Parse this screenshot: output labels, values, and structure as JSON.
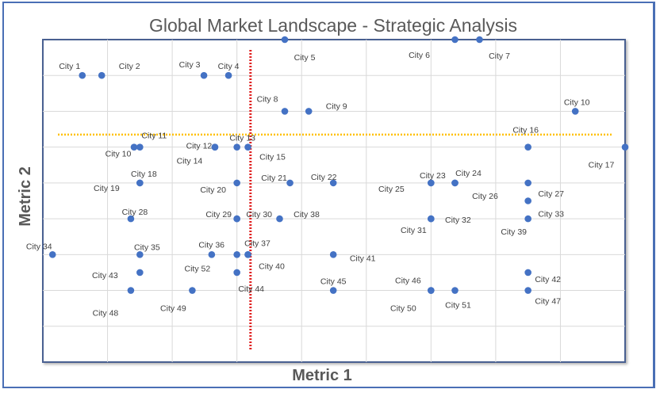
{
  "chart_data": {
    "type": "scatter",
    "title": "Global Market Landscape - Strategic Analysis",
    "xlabel": "Metric 1",
    "ylabel": "Metric 2",
    "xlim": [
      0,
      9
    ],
    "ylim": [
      0,
      9
    ],
    "grid": true,
    "tick_labels_shown": false,
    "point_color": "#4472c4",
    "reference_lines": [
      {
        "orientation": "vertical",
        "value": 3.21,
        "color": "#e02020",
        "style": "dotted"
      },
      {
        "orientation": "horizontal",
        "value": 6.35,
        "color": "#ffc000",
        "style": "dotted"
      }
    ],
    "points": [
      {
        "label": "City 1",
        "x": 0.61,
        "y": 8
      },
      {
        "label": "City 2",
        "x": 0.91,
        "y": 8
      },
      {
        "label": "City 3",
        "x": 2.49,
        "y": 8
      },
      {
        "label": "City 4",
        "x": 2.87,
        "y": 8
      },
      {
        "label": "City 5",
        "x": 3.74,
        "y": 9
      },
      {
        "label": "City 6",
        "x": 6.37,
        "y": 9
      },
      {
        "label": "City 7",
        "x": 6.75,
        "y": 9
      },
      {
        "label": "City 8",
        "x": 3.74,
        "y": 7
      },
      {
        "label": "City 9",
        "x": 4.11,
        "y": 7
      },
      {
        "label": "City 10",
        "x": 8.23,
        "y": 7
      },
      {
        "label": "City 10",
        "x": 1.41,
        "y": 6
      },
      {
        "label": "City 11",
        "x": 1.5,
        "y": 6
      },
      {
        "label": "City 12",
        "x": 2.66,
        "y": 6
      },
      {
        "label": "City 13",
        "x": 3.0,
        "y": 6
      },
      {
        "label": "City 14",
        "x": 2.66,
        "y": 6
      },
      {
        "label": "City 15",
        "x": 3.17,
        "y": 6
      },
      {
        "label": "City 16",
        "x": 7.5,
        "y": 6
      },
      {
        "label": "City 17",
        "x": 9.0,
        "y": 6
      },
      {
        "label": "City 18",
        "x": 1.5,
        "y": 5
      },
      {
        "label": "City 19",
        "x": 1.5,
        "y": 5
      },
      {
        "label": "City 20",
        "x": 3.0,
        "y": 5
      },
      {
        "label": "City 21",
        "x": 3.82,
        "y": 5
      },
      {
        "label": "City 22",
        "x": 4.49,
        "y": 5
      },
      {
        "label": "City 23",
        "x": 6.0,
        "y": 5
      },
      {
        "label": "City 24",
        "x": 6.37,
        "y": 5
      },
      {
        "label": "City 25",
        "x": 6.0,
        "y": 5
      },
      {
        "label": "City 26",
        "x": 6.37,
        "y": 5
      },
      {
        "label": "City 27",
        "x": 7.5,
        "y": 5
      },
      {
        "label": "City 28",
        "x": 1.36,
        "y": 4
      },
      {
        "label": "City 29",
        "x": 3.0,
        "y": 4
      },
      {
        "label": "City 30",
        "x": 3.0,
        "y": 4
      },
      {
        "label": "City 31",
        "x": 6.0,
        "y": 4
      },
      {
        "label": "City 32",
        "x": 6.0,
        "y": 4
      },
      {
        "label": "City 33",
        "x": 7.5,
        "y": 4.5
      },
      {
        "label": "City 34",
        "x": 0.15,
        "y": 3
      },
      {
        "label": "City 35",
        "x": 1.5,
        "y": 3
      },
      {
        "label": "City 36",
        "x": 3.0,
        "y": 3
      },
      {
        "label": "City 37",
        "x": 3.17,
        "y": 3
      },
      {
        "label": "City 38",
        "x": 3.66,
        "y": 4
      },
      {
        "label": "City 39",
        "x": 7.5,
        "y": 4
      },
      {
        "label": "City 40",
        "x": 3.17,
        "y": 3
      },
      {
        "label": "City 41",
        "x": 4.49,
        "y": 3
      },
      {
        "label": "City 42",
        "x": 7.5,
        "y": 2.5
      },
      {
        "label": "City 43",
        "x": 1.5,
        "y": 2.5
      },
      {
        "label": "City 44",
        "x": 3.0,
        "y": 2.5
      },
      {
        "label": "City 45",
        "x": 4.49,
        "y": 2
      },
      {
        "label": "City 46",
        "x": 6.0,
        "y": 2
      },
      {
        "label": "City 47",
        "x": 7.5,
        "y": 2
      },
      {
        "label": "City 48",
        "x": 1.36,
        "y": 2
      },
      {
        "label": "City 49",
        "x": 2.31,
        "y": 2
      },
      {
        "label": "City 50",
        "x": 6.0,
        "y": 2
      },
      {
        "label": "City 51",
        "x": 6.37,
        "y": 2
      },
      {
        "label": "City 52",
        "x": 2.61,
        "y": 3
      }
    ]
  }
}
